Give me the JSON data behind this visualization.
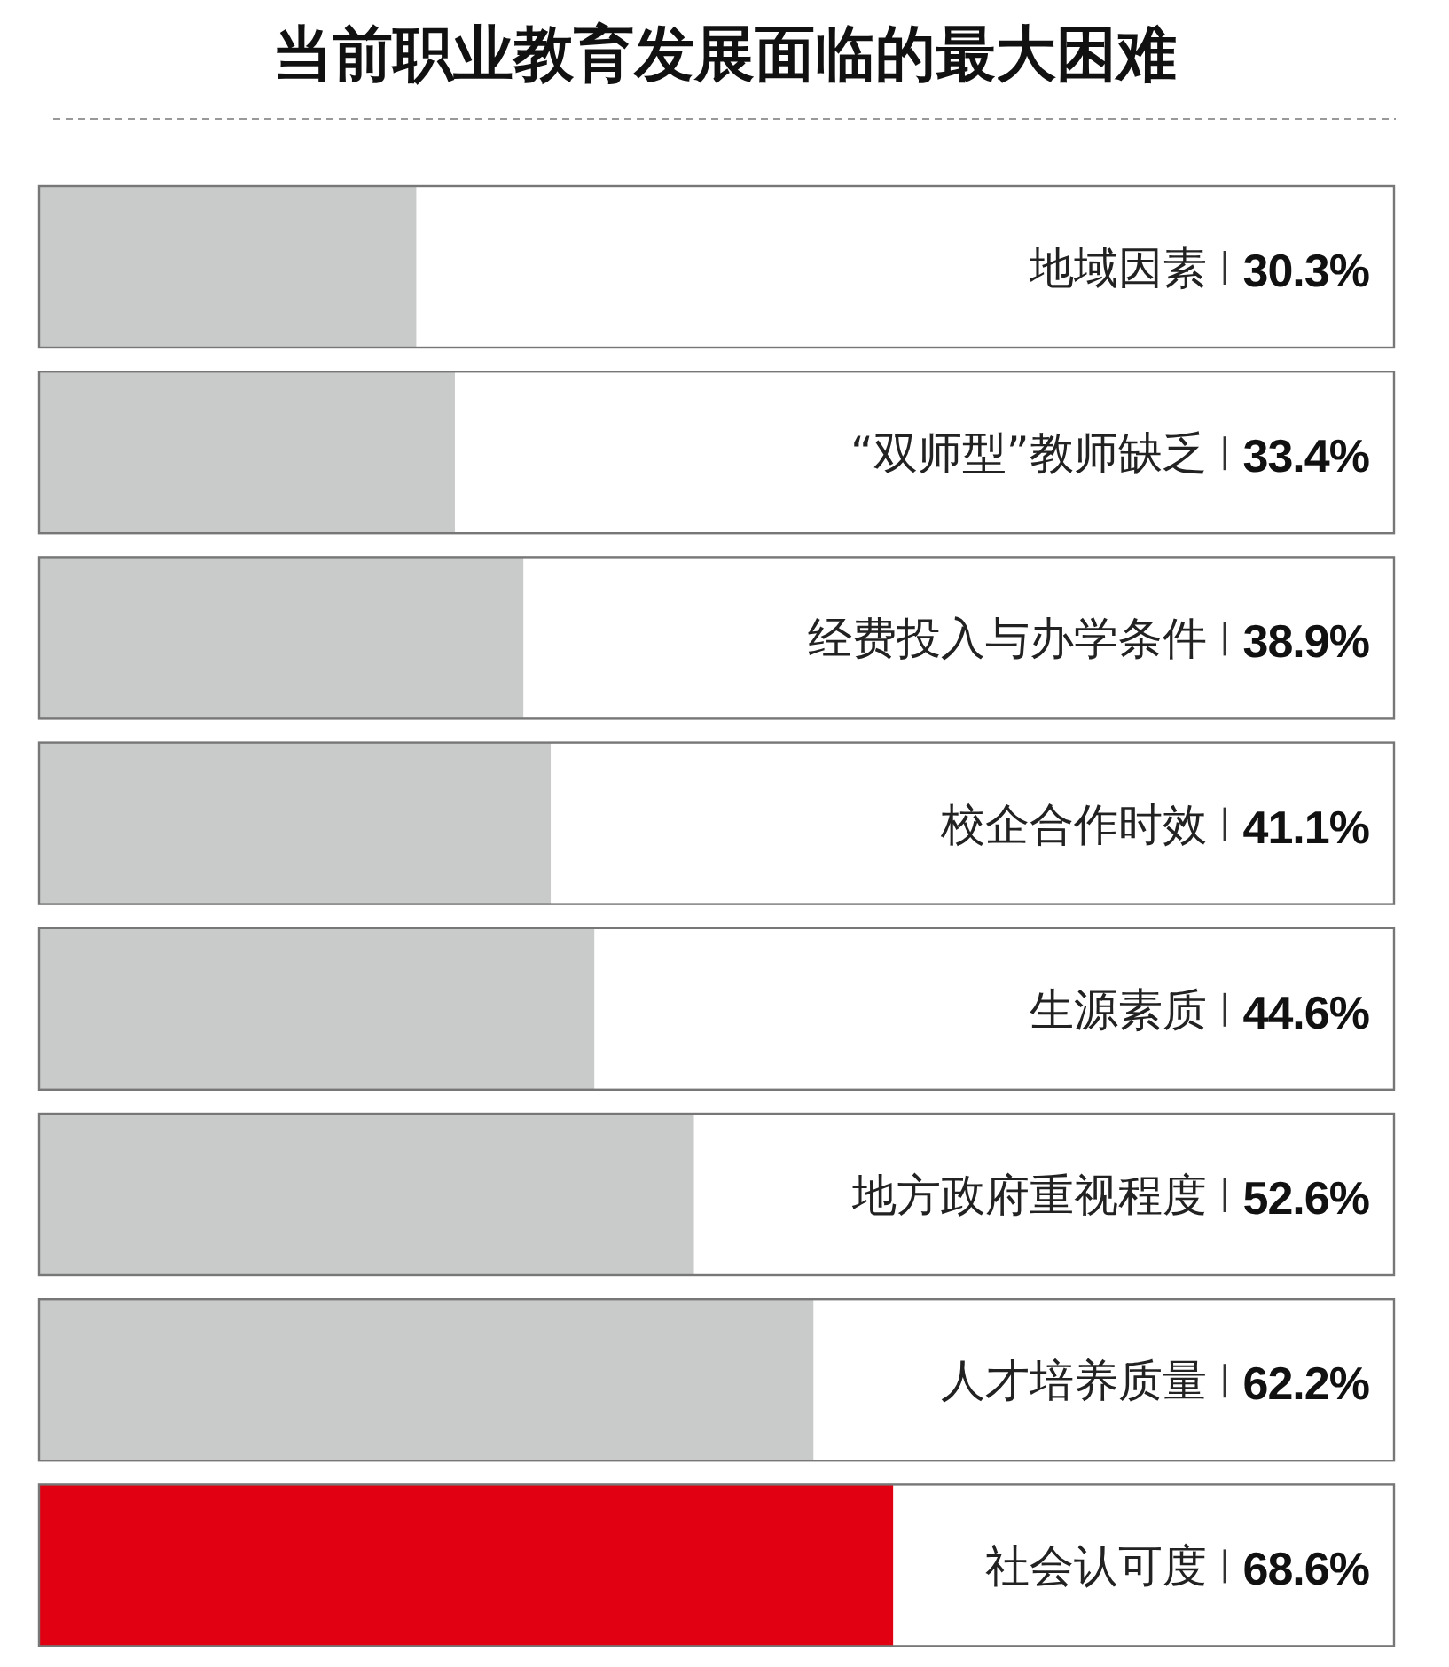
{
  "chart_data": {
    "type": "bar",
    "orientation": "horizontal",
    "title": "当前职业教育发展面临的最大困难",
    "categories": [
      "地域因素",
      "“双师型”教师缺乏",
      "经费投入与办学条件",
      "校企合作时效",
      "生源素质",
      "地方政府重视程度",
      "人才培养质量",
      "社会认可度"
    ],
    "values": [
      30.3,
      33.4,
      38.9,
      41.1,
      44.6,
      52.6,
      62.2,
      68.6
    ],
    "value_labels": [
      "30.3%",
      "33.4%",
      "38.9%",
      "41.1%",
      "44.6%",
      "52.6%",
      "62.2%",
      "68.6%"
    ],
    "colors": [
      "#c9caca",
      "#c9caca",
      "#c9caca",
      "#c9caca",
      "#c9caca",
      "#c9caca",
      "#c9caca",
      "#e00012"
    ]
  }
}
